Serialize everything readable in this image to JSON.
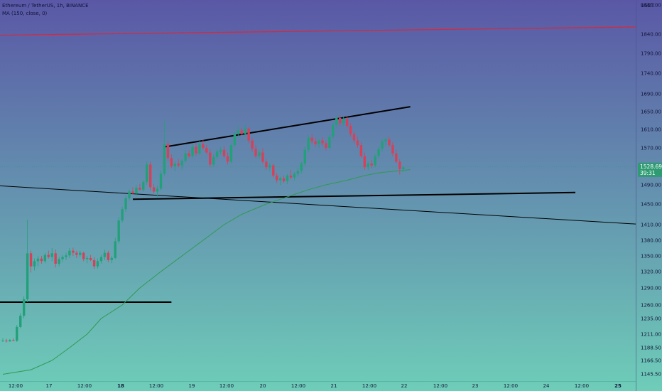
{
  "header": {
    "symbol_line": "Ethereum / TetherUS, 1h, BINANCE",
    "indicator_line": "MA (150, close, 0)"
  },
  "chart_data": {
    "type": "candlestick",
    "currency_label": "USDT",
    "y_ticks": [
      1880,
      1840,
      1790,
      1740,
      1690,
      1650,
      1610,
      1570,
      1530,
      1490,
      1450,
      1410,
      1380,
      1350,
      1320,
      1290,
      1260,
      1235,
      1211,
      1188.5,
      1166.5,
      1145.5
    ],
    "y_tick_labels": [
      "1880.00",
      "1840.00",
      "1790.00",
      "1740.00",
      "1690.00",
      "1650.00",
      "1610.00",
      "1570.00",
      "1530.00",
      "1490.00",
      "1450.00",
      "1410.00",
      "1380.00",
      "1350.00",
      "1320.00",
      "1290.00",
      "1260.00",
      "1235.00",
      "1211.00",
      "1188.50",
      "1166.50",
      "1145.50"
    ],
    "x_tick_labels": [
      "12:00",
      "17",
      "12:00",
      "18",
      "12:00",
      "19",
      "12:00",
      "20",
      "12:00",
      "21",
      "12:00",
      "22",
      "12:00",
      "23",
      "12:00",
      "24",
      "12:00",
      "25"
    ],
    "x_tick_bold": [
      false,
      false,
      false,
      true,
      false,
      false,
      false,
      false,
      false,
      false,
      false,
      false,
      false,
      false,
      false,
      false,
      false,
      true
    ],
    "current_price": "1528.69",
    "countdown": "39:31",
    "colors": {
      "bg_top": "#5a58a6",
      "bg_bottom": "#6ecdb8",
      "up": "#22a07a",
      "down": "#d6415a",
      "ma": "#2f9a52",
      "trendline": "#000000",
      "red_line": "#d8283c",
      "label_bg": "#2e9b72"
    },
    "candles": [
      [
        1200,
        1204,
        1198,
        1200
      ],
      [
        1200,
        1203,
        1197,
        1199
      ],
      [
        1199,
        1203,
        1198,
        1201
      ],
      [
        1201,
        1204,
        1199,
        1200
      ],
      [
        1200,
        1225,
        1198,
        1222
      ],
      [
        1222,
        1245,
        1220,
        1240
      ],
      [
        1240,
        1275,
        1235,
        1270
      ],
      [
        1270,
        1420,
        1265,
        1355
      ],
      [
        1355,
        1360,
        1318,
        1330
      ],
      [
        1330,
        1345,
        1322,
        1340
      ],
      [
        1340,
        1350,
        1330,
        1345
      ],
      [
        1345,
        1350,
        1335,
        1340
      ],
      [
        1340,
        1356,
        1336,
        1352
      ],
      [
        1352,
        1360,
        1345,
        1348
      ],
      [
        1348,
        1365,
        1340,
        1355
      ],
      [
        1355,
        1362,
        1328,
        1335
      ],
      [
        1335,
        1348,
        1330,
        1344
      ],
      [
        1344,
        1352,
        1338,
        1348
      ],
      [
        1348,
        1356,
        1342,
        1351
      ],
      [
        1351,
        1365,
        1346,
        1360
      ],
      [
        1360,
        1366,
        1350,
        1356
      ],
      [
        1356,
        1360,
        1346,
        1352
      ],
      [
        1352,
        1360,
        1348,
        1356
      ],
      [
        1356,
        1358,
        1340,
        1344
      ],
      [
        1344,
        1350,
        1336,
        1346
      ],
      [
        1346,
        1352,
        1340,
        1342
      ],
      [
        1342,
        1348,
        1325,
        1330
      ],
      [
        1330,
        1345,
        1326,
        1340
      ],
      [
        1340,
        1352,
        1335,
        1348
      ],
      [
        1348,
        1362,
        1342,
        1356
      ],
      [
        1356,
        1360,
        1338,
        1342
      ],
      [
        1342,
        1350,
        1336,
        1346
      ],
      [
        1346,
        1385,
        1344,
        1378
      ],
      [
        1378,
        1425,
        1374,
        1418
      ],
      [
        1418,
        1445,
        1414,
        1440
      ],
      [
        1440,
        1468,
        1435,
        1462
      ],
      [
        1462,
        1480,
        1458,
        1476
      ],
      [
        1476,
        1485,
        1470,
        1472
      ],
      [
        1472,
        1490,
        1466,
        1484
      ],
      [
        1484,
        1492,
        1478,
        1480
      ],
      [
        1480,
        1500,
        1476,
        1496
      ],
      [
        1496,
        1540,
        1490,
        1534
      ],
      [
        1534,
        1540,
        1478,
        1485
      ],
      [
        1485,
        1492,
        1472,
        1476
      ],
      [
        1476,
        1488,
        1462,
        1482
      ],
      [
        1482,
        1520,
        1478,
        1514
      ],
      [
        1514,
        1630,
        1510,
        1578
      ],
      [
        1578,
        1584,
        1540,
        1548
      ],
      [
        1548,
        1556,
        1526,
        1530
      ],
      [
        1530,
        1540,
        1520,
        1536
      ],
      [
        1536,
        1546,
        1528,
        1532
      ],
      [
        1532,
        1546,
        1522,
        1542
      ],
      [
        1542,
        1565,
        1538,
        1558
      ],
      [
        1558,
        1565,
        1548,
        1552
      ],
      [
        1552,
        1578,
        1548,
        1572
      ],
      [
        1572,
        1580,
        1552,
        1558
      ],
      [
        1558,
        1585,
        1554,
        1578
      ],
      [
        1578,
        1588,
        1566,
        1570
      ],
      [
        1570,
        1576,
        1556,
        1560
      ],
      [
        1560,
        1568,
        1528,
        1534
      ],
      [
        1534,
        1556,
        1530,
        1550
      ],
      [
        1550,
        1566,
        1546,
        1562
      ],
      [
        1562,
        1572,
        1556,
        1566
      ],
      [
        1566,
        1574,
        1548,
        1552
      ],
      [
        1552,
        1560,
        1534,
        1540
      ],
      [
        1540,
        1580,
        1536,
        1576
      ],
      [
        1576,
        1604,
        1572,
        1600
      ],
      [
        1600,
        1618,
        1592,
        1608
      ],
      [
        1608,
        1614,
        1596,
        1600
      ],
      [
        1600,
        1620,
        1594,
        1612
      ],
      [
        1612,
        1616,
        1580,
        1586
      ],
      [
        1586,
        1592,
        1562,
        1568
      ],
      [
        1568,
        1576,
        1548,
        1552
      ],
      [
        1552,
        1566,
        1546,
        1560
      ],
      [
        1560,
        1570,
        1536,
        1540
      ],
      [
        1540,
        1546,
        1522,
        1528
      ],
      [
        1528,
        1538,
        1520,
        1532
      ],
      [
        1532,
        1536,
        1506,
        1510
      ],
      [
        1510,
        1516,
        1494,
        1500
      ],
      [
        1500,
        1508,
        1490,
        1504
      ],
      [
        1504,
        1510,
        1494,
        1498
      ],
      [
        1498,
        1514,
        1492,
        1510
      ],
      [
        1510,
        1522,
        1502,
        1506
      ],
      [
        1506,
        1518,
        1500,
        1514
      ],
      [
        1514,
        1526,
        1508,
        1520
      ],
      [
        1520,
        1540,
        1514,
        1536
      ],
      [
        1536,
        1572,
        1530,
        1566
      ],
      [
        1566,
        1598,
        1560,
        1592
      ],
      [
        1592,
        1600,
        1578,
        1584
      ],
      [
        1584,
        1592,
        1572,
        1578
      ],
      [
        1578,
        1590,
        1570,
        1586
      ],
      [
        1586,
        1594,
        1574,
        1580
      ],
      [
        1580,
        1586,
        1564,
        1570
      ],
      [
        1570,
        1598,
        1566,
        1594
      ],
      [
        1594,
        1624,
        1590,
        1620
      ],
      [
        1620,
        1642,
        1614,
        1636
      ],
      [
        1636,
        1642,
        1618,
        1624
      ],
      [
        1624,
        1640,
        1618,
        1634
      ],
      [
        1634,
        1640,
        1612,
        1618
      ],
      [
        1618,
        1624,
        1594,
        1600
      ],
      [
        1600,
        1606,
        1580,
        1586
      ],
      [
        1586,
        1594,
        1570,
        1576
      ],
      [
        1576,
        1582,
        1548,
        1552
      ],
      [
        1552,
        1560,
        1522,
        1528
      ],
      [
        1528,
        1540,
        1522,
        1536
      ],
      [
        1536,
        1544,
        1526,
        1532
      ],
      [
        1532,
        1556,
        1528,
        1552
      ],
      [
        1552,
        1574,
        1548,
        1568
      ],
      [
        1568,
        1590,
        1562,
        1584
      ],
      [
        1584,
        1592,
        1574,
        1588
      ],
      [
        1588,
        1594,
        1572,
        1576
      ],
      [
        1576,
        1582,
        1552,
        1558
      ],
      [
        1558,
        1566,
        1536,
        1540
      ],
      [
        1540,
        1546,
        1512,
        1524
      ],
      [
        1524,
        1532,
        1518,
        1528
      ]
    ],
    "ma_series": [
      [
        1145,
        0
      ],
      [
        1152,
        8
      ],
      [
        1166.5,
        14
      ],
      [
        1188.5,
        19
      ],
      [
        1211,
        24
      ],
      [
        1235,
        28
      ],
      [
        1260,
        34
      ],
      [
        1290,
        39
      ],
      [
        1320,
        45
      ],
      [
        1350,
        51
      ],
      [
        1380,
        57
      ],
      [
        1410,
        63
      ],
      [
        1430,
        68
      ],
      [
        1450,
        75
      ],
      [
        1460,
        79
      ],
      [
        1470,
        83
      ],
      [
        1480,
        87
      ],
      [
        1490,
        92
      ],
      [
        1500,
        98
      ],
      [
        1510,
        103
      ],
      [
        1516,
        107
      ],
      [
        1520,
        112
      ],
      [
        1523,
        116
      ]
    ],
    "ma_x_start": 0,
    "ma_x_end": 116,
    "trendlines": [
      {
        "color": "trendline",
        "width": 2,
        "points": [
          [
            46,
            1572
          ],
          [
            116,
            1661
          ]
        ]
      },
      {
        "color": "trendline",
        "width": 2,
        "points": [
          [
            37,
            1460
          ],
          [
            163,
            1474
          ]
        ]
      },
      {
        "color": "trendline",
        "width": 2,
        "points": [
          [
            -10,
            1265
          ],
          [
            48,
            1265
          ]
        ]
      },
      {
        "color": "trendline",
        "width": 1,
        "points": [
          [
            -10,
            1492
          ],
          [
            183,
            1410
          ]
        ]
      },
      {
        "color": "red_line",
        "width": 1.2,
        "points": [
          [
            -10,
            1836
          ],
          [
            183,
            1850
          ]
        ]
      }
    ]
  }
}
